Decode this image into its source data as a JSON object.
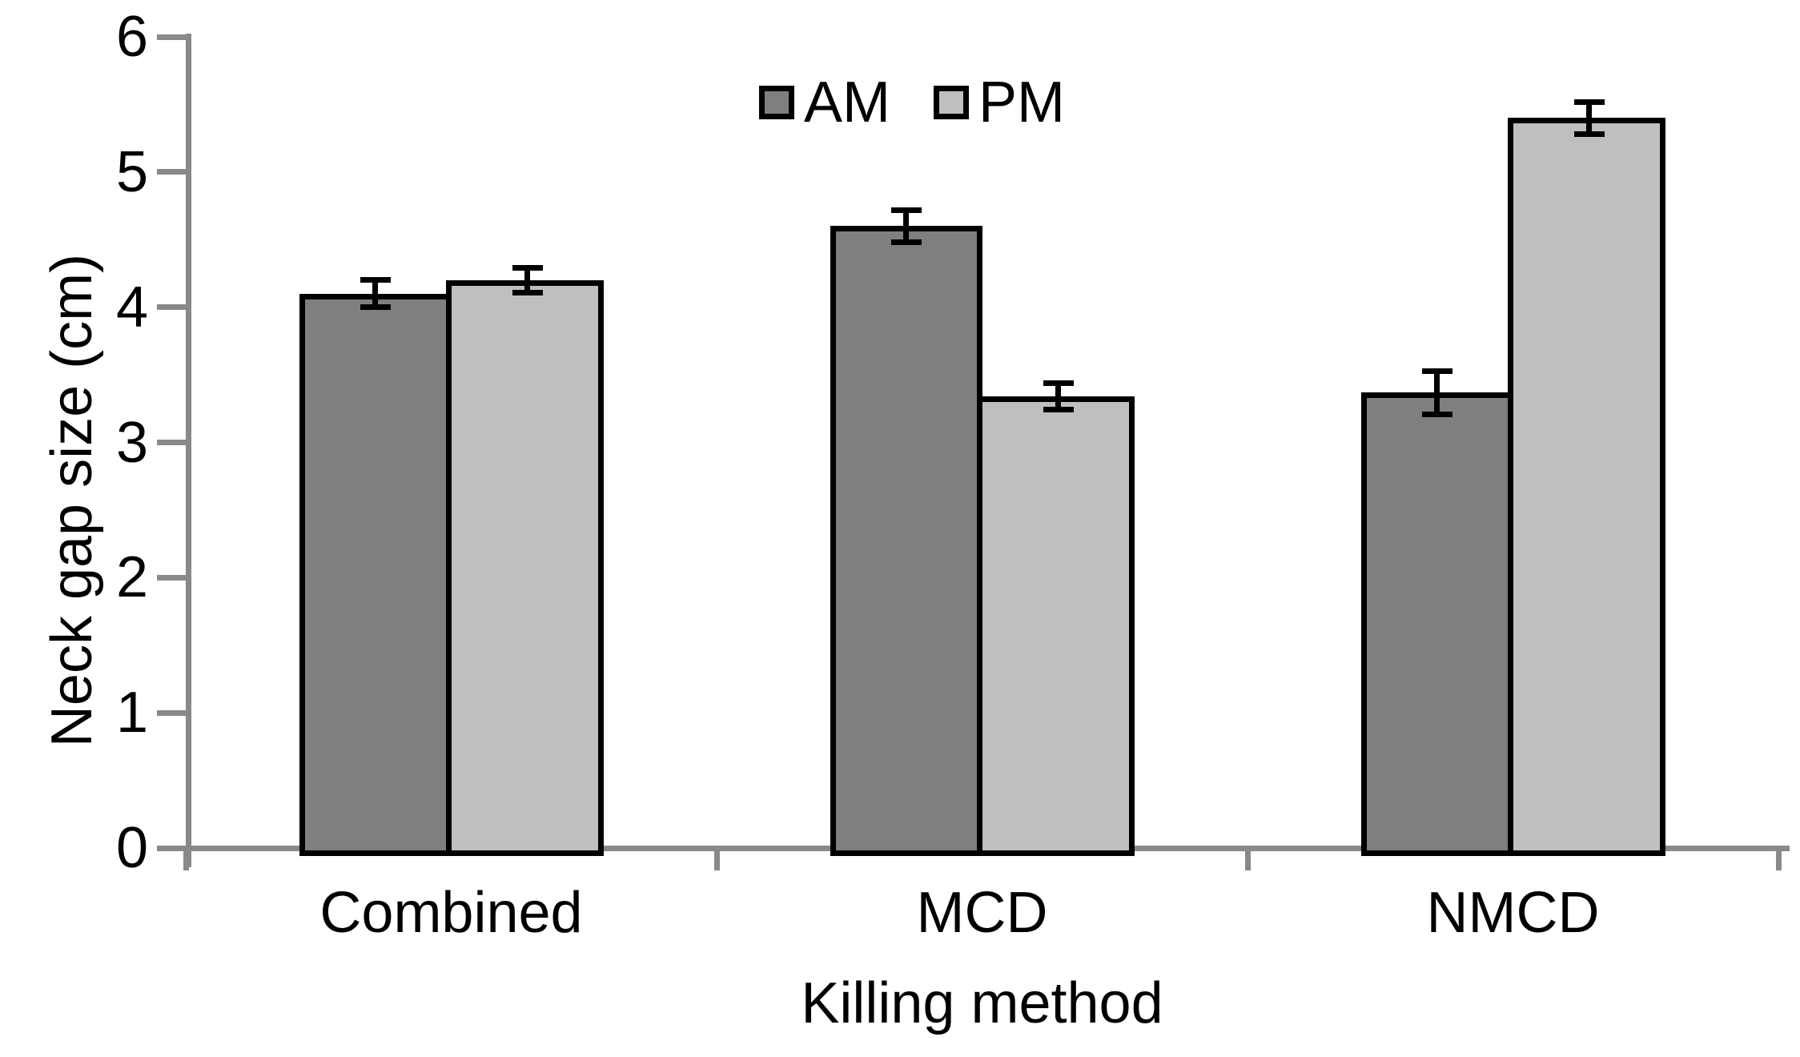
{
  "chart_data": {
    "type": "bar",
    "categories": [
      "Combined",
      "MCD",
      "NMCD"
    ],
    "series": [
      {
        "name": "AM",
        "color": "#7f7f7f",
        "values": [
          4.1,
          4.6,
          3.37
        ],
        "errors": [
          0.1,
          0.12,
          0.16
        ]
      },
      {
        "name": "PM",
        "color": "#bfbfbf",
        "values": [
          4.2,
          3.34,
          5.4
        ],
        "errors": [
          0.09,
          0.1,
          0.12
        ]
      }
    ],
    "xlabel": "Killing method",
    "ylabel": "Neck gap size (cm)",
    "ylim": [
      0,
      6
    ],
    "yticks": [
      0,
      1,
      2,
      3,
      4,
      5,
      6
    ],
    "legend_position": "top-center",
    "grid": false,
    "error_bars": "symmetric, black caps",
    "bar_border_color": "#000000",
    "axis_color": "#898989",
    "text_color": "#000000",
    "background_color": "#ffffff"
  }
}
